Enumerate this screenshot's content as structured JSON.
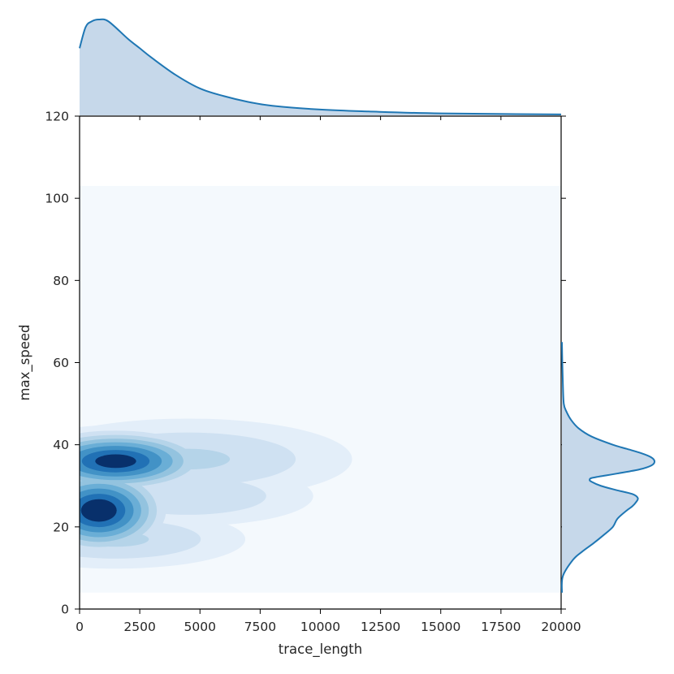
{
  "chart_data": {
    "type": "jointplot-kde",
    "title": "",
    "xlabel": "trace_length",
    "ylabel": "max_speed",
    "xlim": [
      0,
      20000
    ],
    "ylim": [
      0,
      120
    ],
    "xticks": [
      0,
      2500,
      5000,
      7500,
      10000,
      12500,
      15000,
      17500,
      20000
    ],
    "yticks": [
      0,
      20,
      40,
      60,
      80,
      100,
      120
    ],
    "xtick_labels": [
      "0",
      "2500",
      "5000",
      "7500",
      "10000",
      "12500",
      "15000",
      "17500",
      "20000"
    ],
    "ytick_labels": [
      "0",
      "20",
      "40",
      "60",
      "80",
      "100",
      "120"
    ],
    "grid": false,
    "colormap": "Blues",
    "color": "#1f77b4",
    "marginal_fill": "#c6d8ea",
    "joint_region": {
      "x": [
        0,
        20000
      ],
      "y": [
        4,
        103
      ]
    },
    "joint_density_modes": [
      {
        "x": 800,
        "y": 24,
        "sx": 1300,
        "sy": 4.8,
        "w": 1.0
      },
      {
        "x": 1500,
        "y": 36,
        "sx": 1800,
        "sy": 3.5,
        "w": 0.95
      },
      {
        "x": 4500,
        "y": 36.5,
        "sx": 3800,
        "sy": 5.5,
        "w": 0.2
      },
      {
        "x": 4500,
        "y": 27.5,
        "sx": 3000,
        "sy": 4.2,
        "w": 0.18
      },
      {
        "x": 8000,
        "y": 38,
        "sx": 2000,
        "sy": 3.2,
        "w": 0.07
      },
      {
        "x": 7000,
        "y": 27,
        "sx": 1500,
        "sy": 2.6,
        "w": 0.06
      },
      {
        "x": 1500,
        "y": 17,
        "sx": 3000,
        "sy": 4,
        "w": 0.2
      }
    ],
    "x_marginal": {
      "x": [
        0,
        250,
        500,
        800,
        1200,
        2000,
        2500,
        3000,
        4000,
        5000,
        6000,
        7000,
        8000,
        10000,
        12000,
        15000,
        20000
      ],
      "density": [
        0.7,
        0.92,
        0.98,
        1.0,
        0.98,
        0.8,
        0.7,
        0.6,
        0.42,
        0.28,
        0.2,
        0.14,
        0.1,
        0.06,
        0.04,
        0.02,
        0.01
      ]
    },
    "y_marginal": {
      "y": [
        4,
        8,
        12,
        14,
        16,
        18,
        20,
        22,
        24,
        25,
        26,
        27,
        28,
        29,
        30,
        31,
        31.5,
        32,
        33,
        34,
        35,
        36,
        37,
        38,
        39,
        40,
        42,
        44,
        46,
        48,
        50,
        55,
        60,
        65
      ],
      "density": [
        0.0,
        0.01,
        0.12,
        0.22,
        0.34,
        0.45,
        0.55,
        0.6,
        0.7,
        0.76,
        0.8,
        0.82,
        0.76,
        0.58,
        0.42,
        0.32,
        0.3,
        0.34,
        0.6,
        0.84,
        0.97,
        1.0,
        0.96,
        0.85,
        0.7,
        0.55,
        0.32,
        0.18,
        0.1,
        0.05,
        0.02,
        0.01,
        0.004,
        0.0
      ]
    }
  }
}
